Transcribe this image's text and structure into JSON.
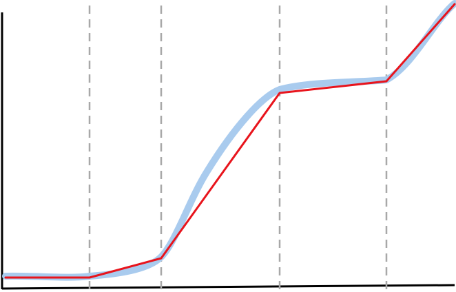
{
  "diagram": {
    "description_free": true,
    "colors": {
      "axis": "#000000",
      "guide": "#a8a8a8",
      "smooth_curve": "#a9cbee",
      "polyline": "#e8141c"
    },
    "guide_count": 4,
    "legend": "none",
    "grid": false
  }
}
